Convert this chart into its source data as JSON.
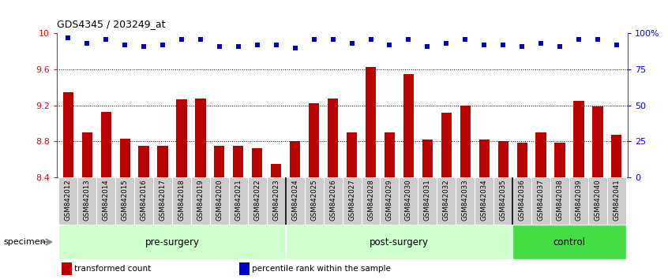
{
  "title": "GDS4345 / 203249_at",
  "categories": [
    "GSM842012",
    "GSM842013",
    "GSM842014",
    "GSM842015",
    "GSM842016",
    "GSM842017",
    "GSM842018",
    "GSM842019",
    "GSM842020",
    "GSM842021",
    "GSM842022",
    "GSM842023",
    "GSM842024",
    "GSM842025",
    "GSM842026",
    "GSM842027",
    "GSM842028",
    "GSM842029",
    "GSM842030",
    "GSM842031",
    "GSM842032",
    "GSM842033",
    "GSM842034",
    "GSM842035",
    "GSM842036",
    "GSM842037",
    "GSM842038",
    "GSM842039",
    "GSM842040",
    "GSM842041"
  ],
  "bar_values": [
    9.35,
    8.9,
    9.13,
    8.83,
    8.75,
    8.75,
    9.27,
    9.28,
    8.75,
    8.75,
    8.72,
    8.55,
    8.8,
    9.22,
    9.28,
    8.9,
    9.63,
    8.9,
    9.55,
    8.82,
    9.12,
    9.2,
    8.82,
    8.8,
    8.78,
    8.9,
    8.78,
    9.25,
    9.19,
    8.87
  ],
  "percentile_values": [
    97,
    93,
    96,
    92,
    91,
    92,
    96,
    96,
    91,
    91,
    92,
    92,
    90,
    96,
    96,
    93,
    96,
    92,
    96,
    91,
    93,
    96,
    92,
    92,
    91,
    93,
    91,
    96,
    96,
    92
  ],
  "bar_color": "#bb0000",
  "dot_color": "#0000cc",
  "ylim_left": [
    8.4,
    10.0
  ],
  "ylim_right": [
    0,
    100
  ],
  "yticks_left": [
    8.4,
    8.8,
    9.2,
    9.6,
    10.0
  ],
  "ytick_labels_left": [
    "8.4",
    "8.8",
    "9.2",
    "9.6",
    "10"
  ],
  "yticks_right": [
    0,
    25,
    50,
    75,
    100
  ],
  "ytick_labels_right": [
    "0",
    "25",
    "50",
    "75",
    "100%"
  ],
  "grid_values": [
    8.8,
    9.2,
    9.6
  ],
  "groups": [
    {
      "label": "pre-surgery",
      "start": 0,
      "end": 11,
      "color": "#ccffcc"
    },
    {
      "label": "post-surgery",
      "start": 12,
      "end": 23,
      "color": "#ccffcc"
    },
    {
      "label": "control",
      "start": 24,
      "end": 29,
      "color": "#44dd44"
    }
  ],
  "specimen_label": "specimen",
  "legend_items": [
    {
      "color": "#bb0000",
      "label": "transformed count"
    },
    {
      "color": "#0000cc",
      "label": "percentile rank within the sample"
    }
  ],
  "xlabel_bg": "#cccccc",
  "border_color": "#555555"
}
